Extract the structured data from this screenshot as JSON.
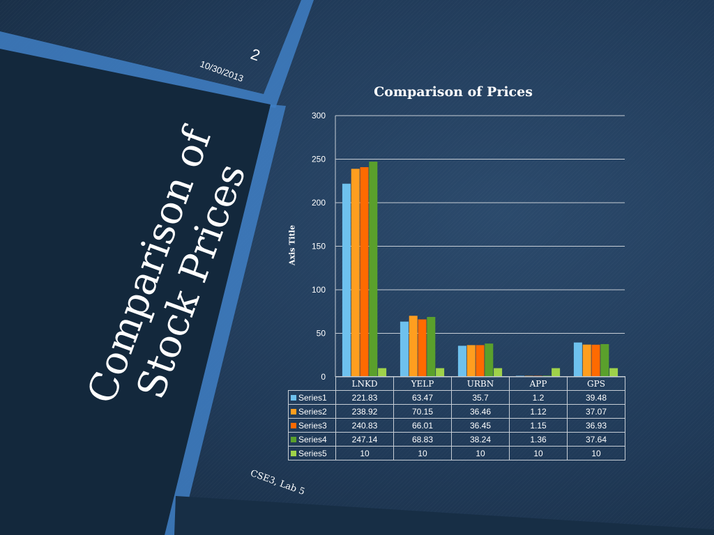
{
  "slide": {
    "title_line1": "Comparison of",
    "title_line2": "Stock Prices",
    "page_number": "2",
    "date": "10/30/2013",
    "footer": "CSE3, Lab 5"
  },
  "colors": {
    "Series1": "#6ec1ee",
    "Series2": "#ff9e1f",
    "Series3": "#ff6a00",
    "Series4": "#5aa02c",
    "Series5": "#9fd24a",
    "band": "#3f7fc4",
    "dark_panel": "#13283c"
  },
  "chart_data": {
    "type": "bar",
    "title": "Comparison of Prices",
    "xlabel": "",
    "ylabel": "Axis Title",
    "categories": [
      "LNKD",
      "YELP",
      "URBN",
      "APP",
      "GPS"
    ],
    "ylim": [
      0,
      300
    ],
    "yticks": [
      "0",
      "50",
      "100",
      "150",
      "200",
      "250",
      "300"
    ],
    "grid": true,
    "legend": "data table",
    "series": [
      {
        "name": "Series1",
        "values": [
          221.83,
          63.47,
          35.7,
          1.2,
          39.48
        ],
        "labels": [
          "221.83",
          "63.47",
          "35.7",
          "1.2",
          "39.48"
        ]
      },
      {
        "name": "Series2",
        "values": [
          238.92,
          70.15,
          36.46,
          1.12,
          37.07
        ],
        "labels": [
          "238.92",
          "70.15",
          "36.46",
          "1.12",
          "37.07"
        ]
      },
      {
        "name": "Series3",
        "values": [
          240.83,
          66.01,
          36.45,
          1.15,
          36.93
        ],
        "labels": [
          "240.83",
          "66.01",
          "36.45",
          "1.15",
          "36.93"
        ]
      },
      {
        "name": "Series4",
        "values": [
          247.14,
          68.83,
          38.24,
          1.36,
          37.64
        ],
        "labels": [
          "247.14",
          "68.83",
          "38.24",
          "1.36",
          "37.64"
        ]
      },
      {
        "name": "Series5",
        "values": [
          10,
          10,
          10,
          10,
          10
        ],
        "labels": [
          "10",
          "10",
          "10",
          "10",
          "10"
        ]
      }
    ]
  }
}
